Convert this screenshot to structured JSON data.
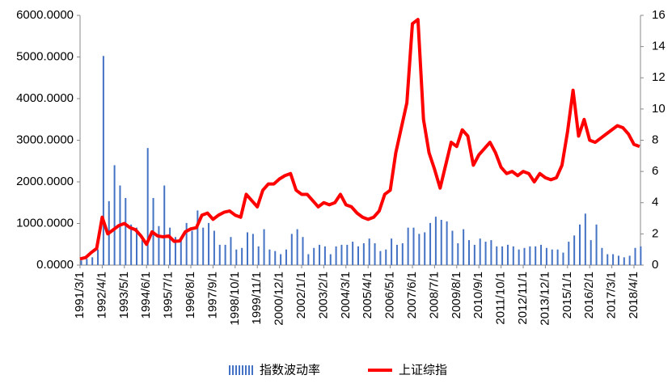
{
  "chart_data": {
    "type": "bar-line",
    "categories": [
      "1991/3/1",
      null,
      null,
      null,
      "1992/4/1",
      null,
      null,
      null,
      "1993/5/1",
      null,
      null,
      null,
      "1994/6/1",
      null,
      null,
      null,
      "1995/7/1",
      null,
      null,
      null,
      "1996/8/1",
      null,
      null,
      null,
      "1997/9/1",
      null,
      null,
      null,
      "1998/10/1",
      null,
      null,
      null,
      "1999/11/1",
      null,
      null,
      null,
      "2000/12/1",
      null,
      null,
      null,
      "2002/1/1",
      null,
      null,
      null,
      "2003/2/1",
      null,
      null,
      null,
      "2004/3/1",
      null,
      null,
      null,
      "2005/4/1",
      null,
      null,
      null,
      "2006/5/1",
      null,
      null,
      null,
      "2007/6/1",
      null,
      null,
      null,
      "2008/7/1",
      null,
      null,
      null,
      "2009/8/1",
      null,
      null,
      null,
      "2010/9/1",
      null,
      null,
      null,
      "2011/10/1",
      null,
      null,
      null,
      "2012/11/1",
      null,
      null,
      null,
      "2013/12/1",
      null,
      null,
      null,
      "2015/1/1",
      null,
      null,
      null,
      "2016/2/1",
      null,
      null,
      null,
      "2017/3/1",
      null,
      null,
      null,
      "2018/4/1",
      null
    ],
    "series": [
      {
        "name": "指数波动率",
        "type": "bar",
        "axis": "y2",
        "color": "#4472c4",
        "values": [
          0.3,
          0.4,
          0.5,
          1,
          13.4,
          4.1,
          6.4,
          5.1,
          4.3,
          2.6,
          2.4,
          1.6,
          7.5,
          4.3,
          2.5,
          5.1,
          2.4,
          1.8,
          1.6,
          2.7,
          2.2,
          3.5,
          2.4,
          2.7,
          2.2,
          1.3,
          1.3,
          1.8,
          1,
          1.1,
          2.1,
          2,
          1.2,
          2.3,
          1,
          0.9,
          0.7,
          1,
          2,
          2.3,
          1.8,
          0.7,
          1.1,
          1.3,
          1.2,
          0.7,
          1.2,
          1.3,
          1.3,
          1.5,
          1.2,
          1.4,
          1.7,
          1.4,
          0.9,
          1,
          1.7,
          1.3,
          1.4,
          2.4,
          2.4,
          2,
          2.1,
          2.7,
          3.1,
          2.9,
          2.8,
          2.2,
          1.4,
          2.3,
          1.6,
          1.3,
          1.7,
          1.5,
          1.6,
          1.2,
          1.2,
          1.3,
          1.2,
          1,
          1.1,
          1.2,
          1.2,
          1.3,
          1.1,
          1,
          1,
          0.8,
          1.5,
          1.9,
          2.6,
          3.3,
          1.6,
          2.6,
          1.1,
          0.7,
          0.7,
          0.6,
          0.5,
          0.6,
          1.1,
          1.2
        ]
      },
      {
        "name": "上证综指",
        "type": "line",
        "color": "#ff0000",
        "values": [
          150,
          180,
          300,
          400,
          1150,
          750,
          850,
          950,
          1000,
          900,
          850,
          700,
          500,
          800,
          700,
          680,
          700,
          570,
          580,
          800,
          870,
          900,
          1200,
          1250,
          1100,
          1200,
          1270,
          1300,
          1200,
          1150,
          1700,
          1550,
          1400,
          1800,
          1950,
          1950,
          2070,
          2150,
          2200,
          1800,
          1700,
          1700,
          1550,
          1400,
          1500,
          1450,
          1500,
          1700,
          1450,
          1400,
          1250,
          1150,
          1100,
          1150,
          1300,
          1700,
          1800,
          2700,
          3300,
          3900,
          5800,
          5900,
          3500,
          2700,
          2300,
          1850,
          2400,
          2950,
          2850,
          3250,
          3100,
          2400,
          2650,
          2800,
          2950,
          2700,
          2350,
          2200,
          2250,
          2150,
          2250,
          2200,
          2000,
          2200,
          2100,
          2050,
          2100,
          2400,
          3200,
          4200,
          3100,
          3500,
          3000,
          2950,
          3050,
          3150,
          3250,
          3350,
          3300,
          3150,
          2900,
          2850
        ]
      }
    ],
    "ylim": [
      0,
      6000
    ],
    "yticks": [
      {
        "value": 0,
        "label": "0.0000"
      },
      {
        "value": 1000,
        "label": "1000.0000"
      },
      {
        "value": 2000,
        "label": "2000.0000"
      },
      {
        "value": 3000,
        "label": "3000.0000"
      },
      {
        "value": 4000,
        "label": "4000.0000"
      },
      {
        "value": 5000,
        "label": "5000.0000"
      },
      {
        "value": 6000,
        "label": "6000.0000"
      }
    ],
    "y2lim": [
      0,
      16
    ],
    "y2ticks": [
      0,
      2,
      4,
      6,
      8,
      10,
      12,
      14,
      16
    ],
    "grid": false
  }
}
